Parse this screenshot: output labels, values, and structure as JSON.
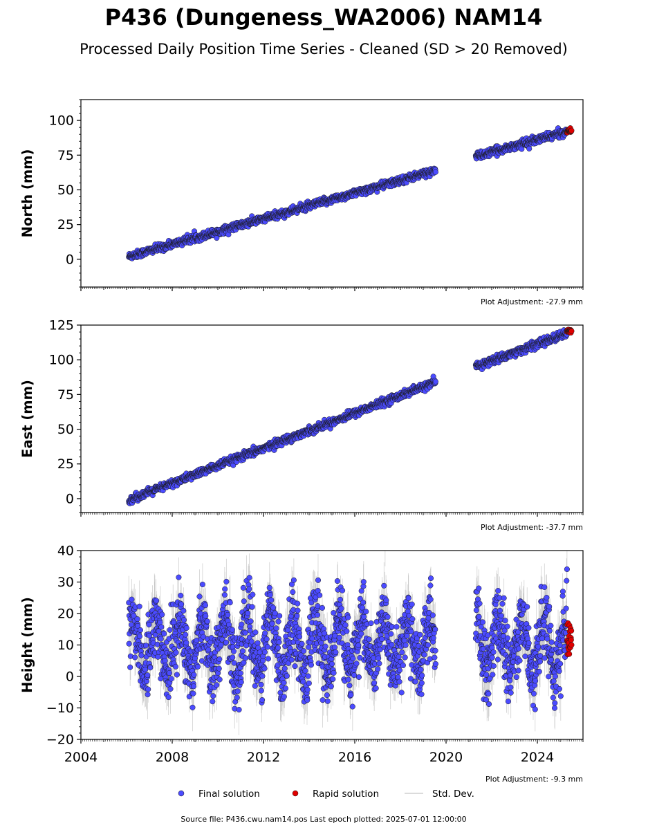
{
  "chart_data": {
    "type": "scatter",
    "title": "P436 (Dungeness_WA2006) NAM14",
    "subtitle": "Processed Daily Position Time Series - Cleaned (SD > 20 Removed)",
    "x_range": [
      2004,
      2026
    ],
    "x_ticks": [
      2004,
      2008,
      2012,
      2016,
      2020,
      2024
    ],
    "x_tick_labels": [
      "2004",
      "2008",
      "2012",
      "2016",
      "2020",
      "2024"
    ],
    "panels": [
      {
        "ylabel": "North (mm)",
        "ylim": [
          -20,
          115
        ],
        "yticks": [
          0,
          25,
          50,
          75,
          100
        ],
        "adjustment": "Plot Adjustment: -27.9 mm",
        "segments": [
          {
            "t_start": 2006.1,
            "t_end": 2019.55,
            "y_start": 2,
            "y_end": 64,
            "noise": 1.3
          },
          {
            "t_start": 2021.3,
            "t_end": 2025.3,
            "y_start": 74,
            "y_end": 92,
            "noise": 1.3
          }
        ],
        "rapid": {
          "t_start": 2025.3,
          "t_end": 2025.5,
          "y": 92.5,
          "spread": 0.6
        }
      },
      {
        "ylabel": "East (mm)",
        "ylim": [
          -10,
          125
        ],
        "yticks": [
          0,
          25,
          50,
          75,
          100,
          125
        ],
        "adjustment": "Plot Adjustment: -37.7 mm",
        "segments": [
          {
            "t_start": 2006.1,
            "t_end": 2019.55,
            "y_start": -1,
            "y_end": 84,
            "noise": 1.3
          },
          {
            "t_start": 2021.3,
            "t_end": 2025.3,
            "y_start": 95,
            "y_end": 119,
            "noise": 1.4
          }
        ],
        "rapid": {
          "t_start": 2025.3,
          "t_end": 2025.5,
          "y": 120.5,
          "spread": 0.6
        }
      },
      {
        "ylabel": "Height (mm)",
        "ylim": [
          -20,
          40
        ],
        "yticks": [
          -20,
          -10,
          0,
          10,
          20,
          30,
          40
        ],
        "adjustment": "Plot Adjustment: -9.3 mm",
        "seasonal": {
          "mean": 10,
          "amplitude": 8,
          "noise": 5.5,
          "peak_phase": 0.3
        },
        "segments": [
          {
            "t_start": 2006.1,
            "t_end": 2019.55
          },
          {
            "t_start": 2021.3,
            "t_end": 2025.3
          }
        ],
        "rapid": {
          "t_start": 2025.3,
          "t_end": 2025.5,
          "y_min": 7,
          "y_max": 18
        }
      }
    ],
    "legend": [
      "Final solution",
      "Rapid solution",
      "Std. Dev."
    ],
    "legend_position": "bottom-center",
    "footer": "Source file: P436.cwu.nam14.pos  Last epoch plotted: 2025-07-01 12:00:00"
  },
  "colors": {
    "final": "#4b4bff",
    "final_edge": "#1a1a1a",
    "rapid": "#e00000",
    "stddev": "#bdbdbd",
    "axis": "#000000"
  }
}
